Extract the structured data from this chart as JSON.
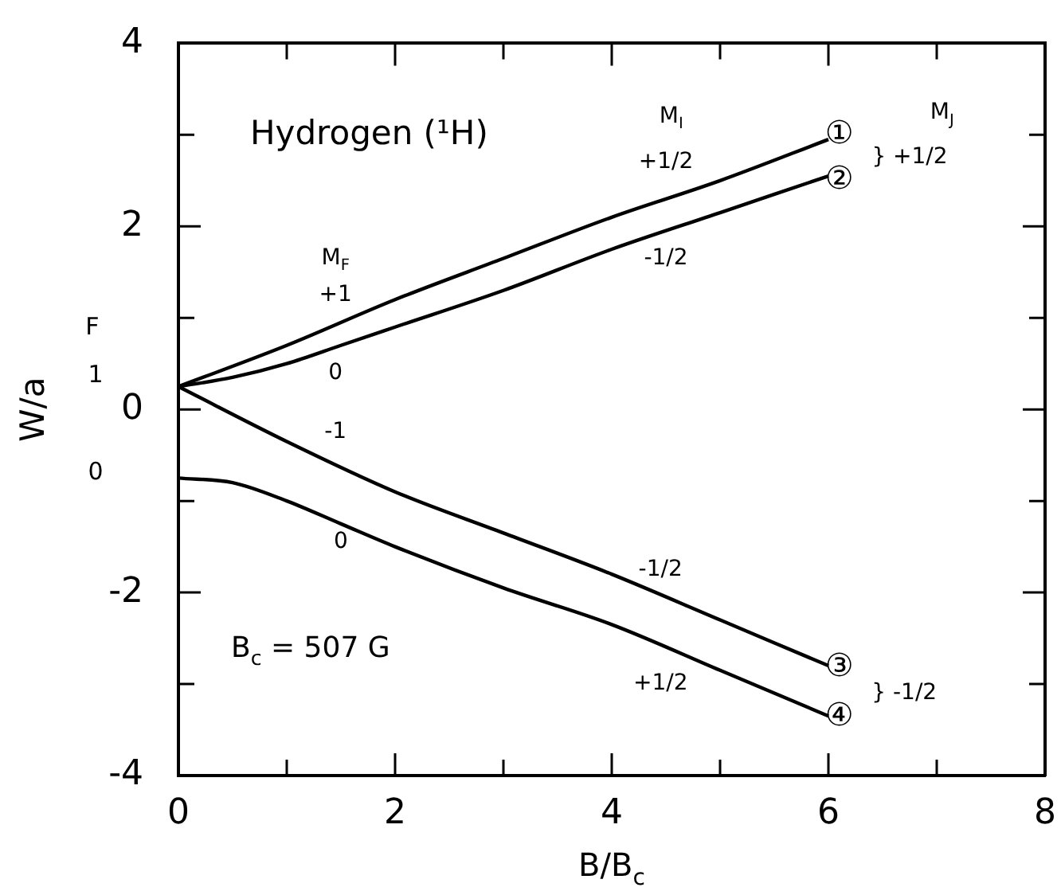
{
  "chart_data": {
    "type": "line",
    "title": "Hydrogen (¹H)",
    "xlabel": "B/B$_{c}$",
    "ylabel": "W/a",
    "xlim": [
      0,
      8
    ],
    "xticks": [
      0,
      {
        "value": 1,
        "label": null
      },
      2,
      {
        "value": 3,
        "label": null
      },
      4,
      {
        "value": 5,
        "label": null
      },
      6,
      {
        "value": 7,
        "label": null
      },
      8
    ],
    "ylim": [
      -4,
      4
    ],
    "yticks": [
      -4,
      {
        "value": -3,
        "label": null
      },
      -2,
      {
        "value": -1,
        "label": null
      },
      0,
      {
        "value": 1,
        "label": null
      },
      2,
      {
        "value": 3,
        "label": null
      },
      4
    ],
    "grid": false,
    "legend": false,
    "marker": "none",
    "line_style": "solid",
    "series": [
      {
        "color": "#000000",
        "x": [
          0,
          1,
          2,
          3,
          4,
          5,
          6
        ],
        "values": [
          0.25,
          0.7,
          1.2,
          1.65,
          2.1,
          2.5,
          2.95
        ]
      },
      {
        "color": "#000000",
        "x": [
          0,
          0.5,
          1,
          1.5,
          2,
          3,
          4,
          5,
          6
        ],
        "values": [
          0.25,
          0.35,
          0.5,
          0.7,
          0.9,
          1.3,
          1.75,
          2.15,
          2.55
        ]
      },
      {
        "color": "#000000",
        "x": [
          0,
          1,
          2,
          3,
          4,
          5,
          6
        ],
        "values": [
          0.25,
          -0.35,
          -0.9,
          -1.35,
          -1.8,
          -2.3,
          -2.8
        ]
      },
      {
        "color": "#000000",
        "x": [
          0,
          0.5,
          1,
          1.5,
          2,
          3,
          4,
          5,
          6
        ],
        "values": [
          -0.75,
          -0.8,
          -1.0,
          -1.25,
          -1.5,
          -1.95,
          -2.35,
          -2.85,
          -3.35
        ]
      }
    ],
    "annotations": [
      "F",
      "1",
      "0",
      "B$_{c}$ = 507 G",
      "M$_{F}$",
      "+1",
      "0",
      "-1",
      "0",
      "M$_{I}$",
      "+1/2",
      "-1/2",
      "-1/2",
      "+1/2",
      "①",
      "②",
      "③",
      "④",
      "M$_{J}$",
      "} +1/2",
      "} -1/2"
    ]
  }
}
